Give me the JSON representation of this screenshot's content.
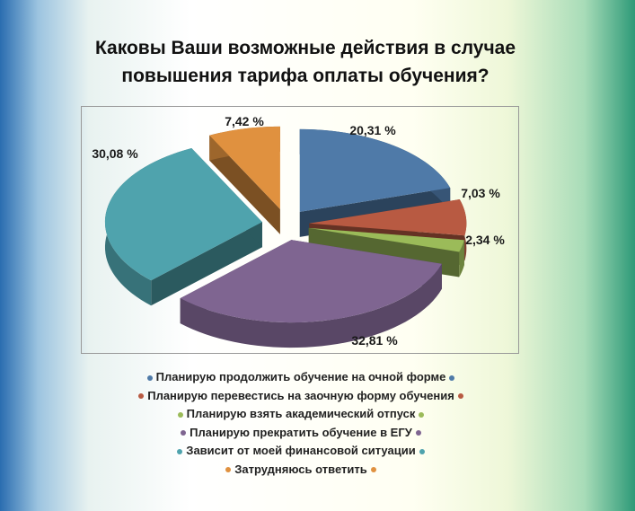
{
  "chart_data": {
    "type": "pie",
    "title": "Каковы Ваши возможные действия в случае повышения тарифа оплаты обучения?",
    "title_lines": [
      "Каковы Ваши возможные действия в случае",
      "повышения тарифа оплаты обучения?"
    ],
    "categories": [
      "Планирую продолжить обучение на очной форме",
      "Планирую перевестись на заочную форму обучения",
      "Планирую взять академический отпуск",
      "Планирую прекратить обучение в ЕГУ",
      "Зависит от моей финансовой ситуации",
      "Затрудняюсь ответить"
    ],
    "values": [
      20.31,
      7.03,
      2.34,
      32.81,
      30.08,
      7.42
    ],
    "labels": [
      "20,31 %",
      "7,03 %",
      "2,34 %",
      "32,81 %",
      "30,08 %",
      "7,42 %"
    ],
    "colors": [
      "#4f7aa8",
      "#b85a42",
      "#9bbb59",
      "#7f6591",
      "#4fa3ad",
      "#e0913f"
    ],
    "legend_position": "bottom"
  }
}
